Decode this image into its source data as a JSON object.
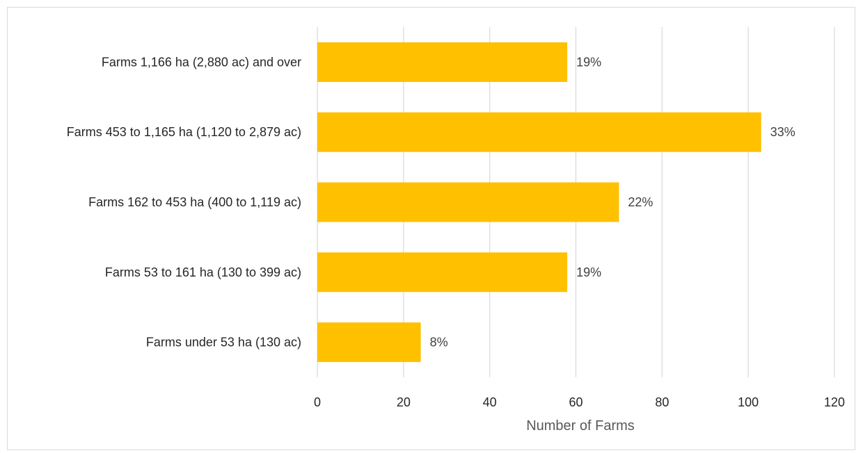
{
  "chart_data": {
    "type": "bar",
    "orientation": "horizontal",
    "title": "",
    "xlabel": "Number of Farms",
    "ylabel": "",
    "xlim": [
      0,
      120
    ],
    "x_ticks": [
      0,
      20,
      40,
      60,
      80,
      100,
      120
    ],
    "grid": "vertical",
    "legend": "none",
    "bar_color": "#FFC000",
    "categories": [
      "Farms 1,166 ha (2,880 ac) and over",
      "Farms 453 to 1,165 ha (1,120 to 2,879 ac)",
      "Farms 162 to 453 ha (400 to 1,119 ac)",
      "Farms 53 to 161 ha (130 to 399 ac)",
      "Farms under 53 ha (130 ac)"
    ],
    "values": [
      58,
      103,
      70,
      58,
      24
    ],
    "data_labels": [
      "19%",
      "33%",
      "22%",
      "19%",
      "8%"
    ]
  }
}
